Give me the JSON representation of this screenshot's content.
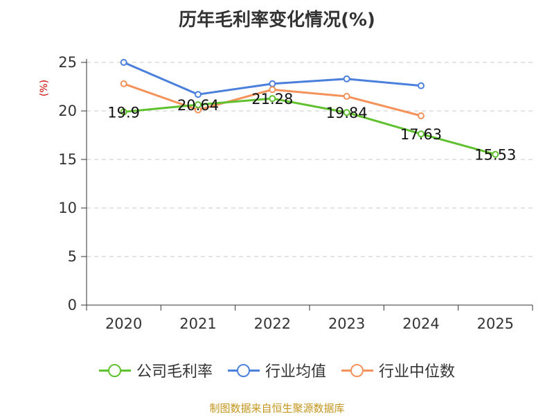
{
  "chart_data": {
    "type": "line",
    "title": "历年毛利率变化情况(%)",
    "ylabel": "(%)",
    "categories": [
      "2020",
      "2021",
      "2022",
      "2023",
      "2024",
      "2025"
    ],
    "ylim": [
      0,
      25
    ],
    "yticks": [
      0,
      5,
      10,
      15,
      20,
      25
    ],
    "grid": true,
    "legend_position": "bottom",
    "series": [
      {
        "name": "公司毛利率",
        "color": "#5fc12e",
        "values": [
          19.9,
          20.64,
          21.28,
          19.84,
          17.63,
          15.53
        ],
        "labels": [
          "19.9",
          "20.64",
          "21.28",
          "19.84",
          "17.63",
          "15.53"
        ]
      },
      {
        "name": "行业均值",
        "color": "#4a7fdb",
        "values": [
          25.0,
          21.7,
          22.8,
          23.3,
          22.6,
          null
        ]
      },
      {
        "name": "行业中位数",
        "color": "#f5925a",
        "values": [
          22.8,
          20.1,
          22.2,
          21.5,
          19.5,
          null
        ]
      }
    ]
  },
  "footer": {
    "source": "制图数据来自恒生聚源数据库"
  }
}
